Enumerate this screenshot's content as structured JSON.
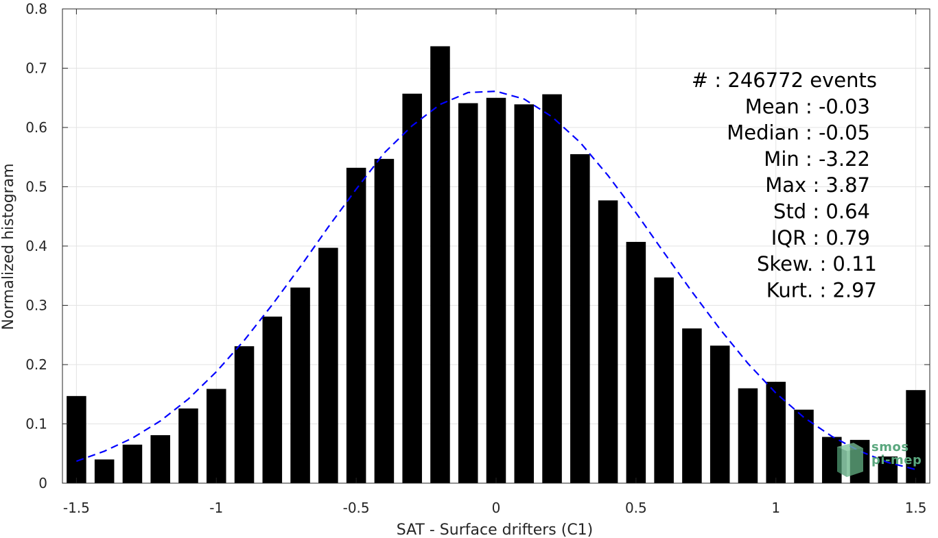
{
  "chart_data": {
    "type": "bar",
    "xlabel": "SAT - Surface drifters (C1)",
    "ylabel": "Normalized histogram",
    "xlim": [
      -1.55,
      1.55
    ],
    "ylim": [
      0,
      0.8
    ],
    "grid": true,
    "xticks": [
      -1.5,
      -1,
      -0.5,
      0,
      0.5,
      1,
      1.5
    ],
    "xtick_labels": [
      "-1.5",
      "-1",
      "-0.5",
      "0",
      "0.5",
      "1",
      "1.5"
    ],
    "yticks": [
      0,
      0.1,
      0.2,
      0.3,
      0.4,
      0.5,
      0.6,
      0.7,
      0.8
    ],
    "ytick_labels": [
      "0",
      "0.1",
      "0.2",
      "0.3",
      "0.4",
      "0.5",
      "0.6",
      "0.7",
      "0.8"
    ],
    "bar_width": 0.07,
    "x": [
      -1.5,
      -1.4,
      -1.3,
      -1.2,
      -1.1,
      -1.0,
      -0.9,
      -0.8,
      -0.7,
      -0.6,
      -0.5,
      -0.4,
      -0.3,
      -0.2,
      -0.1,
      0.0,
      0.1,
      0.2,
      0.3,
      0.4,
      0.5,
      0.6,
      0.7,
      0.8,
      0.9,
      1.0,
      1.1,
      1.2,
      1.3,
      1.4,
      1.5
    ],
    "values": [
      0.147,
      0.04,
      0.065,
      0.081,
      0.126,
      0.159,
      0.231,
      0.281,
      0.33,
      0.397,
      0.532,
      0.547,
      0.657,
      0.737,
      0.641,
      0.65,
      0.639,
      0.656,
      0.555,
      0.477,
      0.407,
      0.347,
      0.261,
      0.232,
      0.16,
      0.171,
      0.124,
      0.078,
      0.073,
      0.045,
      0.157
    ],
    "bar_color": "#000000",
    "fit_curve": {
      "style": "dashed",
      "color": "#0000ff",
      "x": [
        -1.5,
        -1.4,
        -1.3,
        -1.2,
        -1.1,
        -1.0,
        -0.9,
        -0.8,
        -0.7,
        -0.6,
        -0.5,
        -0.4,
        -0.3,
        -0.2,
        -0.1,
        0.0,
        0.1,
        0.2,
        0.3,
        0.4,
        0.5,
        0.6,
        0.7,
        0.8,
        0.9,
        1.0,
        1.1,
        1.2,
        1.3,
        1.4,
        1.5
      ],
      "y": [
        0.037,
        0.054,
        0.076,
        0.105,
        0.142,
        0.188,
        0.241,
        0.301,
        0.365,
        0.432,
        0.496,
        0.557,
        0.603,
        0.639,
        0.659,
        0.661,
        0.648,
        0.618,
        0.575,
        0.519,
        0.456,
        0.389,
        0.323,
        0.26,
        0.202,
        0.152,
        0.111,
        0.079,
        0.054,
        0.035,
        0.023
      ]
    },
    "annotations": [
      "#  : 246772 events",
      "Mean : -0.03",
      "Median : -0.05",
      "Min : -3.22",
      "Max : 3.87",
      "Std : 0.64",
      "IQR : 0.79",
      "Skew. : 0.11",
      "Kurt. : 2.97"
    ]
  },
  "logo": {
    "text_lines": [
      "smos",
      "pi-mep"
    ],
    "color": "#5aa77e"
  }
}
